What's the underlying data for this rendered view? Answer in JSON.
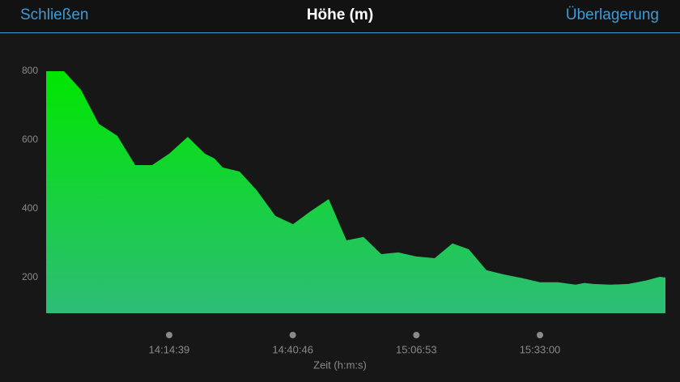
{
  "header": {
    "close": "Schließen",
    "title": "Höhe (m)",
    "overlay": "Überlagerung"
  },
  "chart_data": {
    "type": "area",
    "x_label": "Zeit (h:m:s)",
    "x": [
      49719,
      49945,
      50160,
      50386,
      50622,
      50848,
      51063,
      51279,
      51515,
      51731,
      51854,
      51956,
      52172,
      52388,
      52625,
      52849,
      53075,
      53301,
      53527,
      53743,
      53968,
      54184,
      54410,
      54645,
      54871,
      55077,
      55302,
      55518,
      55754,
      55980,
      56206,
      56432,
      56544,
      56657,
      56873,
      57099,
      57324,
      57499,
      57571
    ],
    "values": [
      800,
      800,
      746,
      647,
      612,
      527,
      527,
      560,
      609,
      560,
      546,
      520,
      508,
      454,
      379,
      355,
      393,
      428,
      308,
      318,
      268,
      273,
      261,
      256,
      299,
      282,
      221,
      209,
      198,
      186,
      186,
      179,
      184,
      181,
      179,
      181,
      191,
      202,
      200
    ],
    "xlim": [
      49719,
      57571
    ],
    "xticks": [
      {
        "value": 51279,
        "label": "14:14:39"
      },
      {
        "value": 52846,
        "label": "14:40:46"
      },
      {
        "value": 54413,
        "label": "15:06:53"
      },
      {
        "value": 55980,
        "label": "15:33:00"
      }
    ],
    "ylim": [
      96,
      850
    ],
    "yticks": [
      200,
      400,
      600,
      800
    ],
    "color_top": "#00e600",
    "color_bottom": "#2dbd78"
  }
}
